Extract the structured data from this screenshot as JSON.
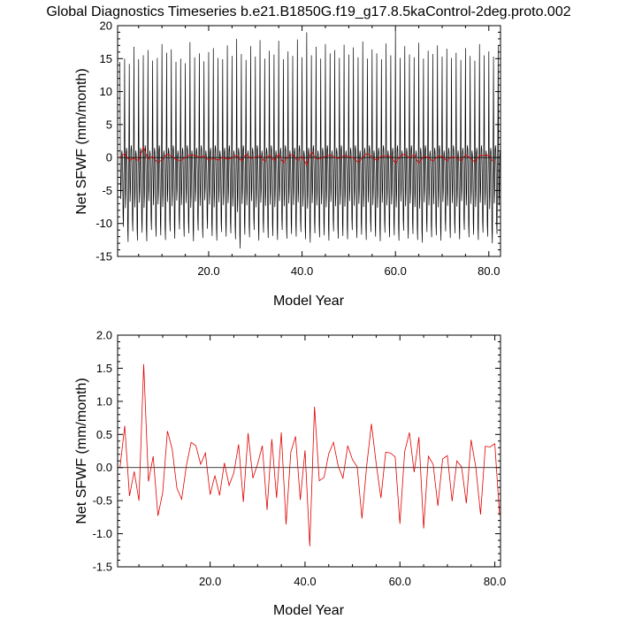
{
  "title": "Global Diagnostics Timeseries b.e21.B1850G.f19_g17.8.5kaControl-2deg.proto.002",
  "chart_data": [
    {
      "type": "line",
      "xlabel": "Model Year",
      "ylabel": "Net SFWF (mm/month)",
      "xlim": [
        0.5,
        82.5
      ],
      "ylim": [
        -15,
        20
      ],
      "xticks": [
        20,
        40,
        60,
        80
      ],
      "xtick_labels": [
        "20.0",
        "40.0",
        "60.0",
        "80.0"
      ],
      "yticks": [
        -15,
        -10,
        -5,
        0,
        5,
        10,
        15,
        20
      ],
      "ytick_labels": [
        "-15",
        "-10",
        "-5",
        "0",
        "5",
        "10",
        "15",
        "20"
      ],
      "zero_line": true,
      "series": [
        {
          "color": "#000000",
          "resolution": "monthly",
          "years": [
            1,
            82
          ],
          "seasonal_max": [
            14.5,
            15.0,
            14.2,
            16.8,
            14.9,
            15.5,
            16.3,
            14.7,
            15.1,
            17.2,
            15.9,
            16.4,
            14.5,
            15.0,
            14.3,
            17.5,
            15.2,
            15.8,
            14.6,
            16.0,
            16.6,
            15.1,
            14.9,
            17.0,
            15.4,
            18.0,
            15.7,
            14.8,
            16.9,
            15.3,
            17.8,
            15.0,
            16.2,
            15.6,
            17.7,
            14.9,
            16.1,
            15.4,
            17.9,
            15.2,
            19.0,
            15.5,
            16.8,
            15.0,
            17.2,
            15.8,
            16.3,
            15.1,
            17.1,
            15.6,
            16.7,
            15.2,
            17.6,
            15.0,
            16.4,
            15.8,
            14.9,
            17.3,
            15.5,
            19.3,
            15.1,
            16.9,
            15.6,
            15.2,
            17.4,
            15.0,
            16.2,
            15.7,
            17.0,
            15.3,
            16.5,
            15.1,
            15.9,
            14.8,
            16.6,
            15.4,
            14.7,
            17.2,
            15.5,
            16.1,
            15.3,
            16.9
          ],
          "seasonal_min": [
            -10.5,
            -12.8,
            -11.2,
            -12.6,
            -11.4,
            -12.7,
            -11.0,
            -12.0,
            -11.8,
            -12.5,
            -11.2,
            -12.3,
            -10.9,
            -12.0,
            -11.5,
            -12.7,
            -11.1,
            -12.2,
            -10.8,
            -11.9,
            -12.6,
            -11.3,
            -12.0,
            -11.5,
            -12.4,
            -13.8,
            -11.7,
            -12.1,
            -11.0,
            -12.6,
            -11.4,
            -12.2,
            -11.9,
            -12.5,
            -11.0,
            -12.3,
            -11.6,
            -12.0,
            -11.3,
            -12.4,
            -12.9,
            -11.5,
            -12.1,
            -11.8,
            -12.6,
            -11.2,
            -12.3,
            -11.9,
            -12.4,
            -11.0,
            -12.2,
            -11.7,
            -12.5,
            -11.3,
            -12.0,
            -12.7,
            -11.4,
            -12.1,
            -11.8,
            -12.6,
            -11.1,
            -12.3,
            -11.6,
            -12.5,
            -12.9,
            -11.3,
            -12.1,
            -11.8,
            -12.6,
            -11.2,
            -12.2,
            -11.5,
            -12.4,
            -11.0,
            -12.1,
            -11.7,
            -12.5,
            -11.4,
            -12.0,
            -13.0,
            -11.6,
            -12.1
          ]
        },
        {
          "color": "#e00000",
          "resolution": "annual",
          "x": [
            1,
            2,
            3,
            4,
            5,
            6,
            7,
            8,
            9,
            10,
            11,
            12,
            13,
            14,
            15,
            16,
            17,
            18,
            19,
            20,
            21,
            22,
            23,
            24,
            25,
            26,
            27,
            28,
            29,
            30,
            31,
            32,
            33,
            34,
            35,
            36,
            37,
            38,
            39,
            40,
            41,
            42,
            43,
            44,
            45,
            46,
            47,
            48,
            49,
            50,
            51,
            52,
            53,
            54,
            55,
            56,
            57,
            58,
            59,
            60,
            61,
            62,
            63,
            64,
            65,
            66,
            67,
            68,
            69,
            70,
            71,
            72,
            73,
            74,
            75,
            76,
            77,
            78,
            79,
            80,
            81
          ],
          "values": [
            0.0,
            0.63,
            -0.43,
            -0.06,
            -0.5,
            1.56,
            -0.21,
            0.17,
            -0.73,
            -0.38,
            0.55,
            0.28,
            -0.31,
            -0.48,
            0.03,
            0.38,
            0.33,
            0.05,
            0.22,
            -0.41,
            -0.12,
            -0.42,
            0.07,
            -0.27,
            -0.08,
            0.35,
            -0.52,
            0.52,
            -0.16,
            0.05,
            0.33,
            -0.64,
            0.43,
            -0.46,
            0.53,
            -0.86,
            0.23,
            0.47,
            -0.49,
            0.26,
            -1.19,
            0.92,
            -0.2,
            -0.15,
            0.21,
            0.38,
            0.02,
            -0.16,
            0.33,
            0.12,
            0.01,
            -0.77,
            0.03,
            0.66,
            0.06,
            -0.46,
            0.23,
            0.22,
            0.16,
            -0.85,
            0.24,
            0.53,
            -0.07,
            0.46,
            -0.92,
            0.17,
            0.05,
            -0.58,
            0.13,
            0.18,
            -0.51,
            0.1,
            0.01,
            -0.54,
            0.42,
            0.0,
            -0.71,
            0.32,
            0.31,
            0.36,
            -0.72
          ]
        }
      ]
    },
    {
      "type": "line",
      "xlabel": "Model Year",
      "ylabel": "Net SFWF (mm/month)",
      "xlim": [
        0.5,
        81.2
      ],
      "ylim": [
        -1.5,
        2.0
      ],
      "xticks": [
        20,
        40,
        60,
        80
      ],
      "xtick_labels": [
        "20.0",
        "40.0",
        "60.0",
        "80.0"
      ],
      "yticks": [
        -1.5,
        -1.0,
        -0.5,
        0.0,
        0.5,
        1.0,
        1.5,
        2.0
      ],
      "ytick_labels": [
        "-1.5",
        "-1.0",
        "-0.5",
        "0.0",
        "0.5",
        "1.0",
        "1.5",
        "2.0"
      ],
      "zero_line": true,
      "series": [
        {
          "color": "#e00000",
          "resolution": "annual",
          "x": [
            1,
            2,
            3,
            4,
            5,
            6,
            7,
            8,
            9,
            10,
            11,
            12,
            13,
            14,
            15,
            16,
            17,
            18,
            19,
            20,
            21,
            22,
            23,
            24,
            25,
            26,
            27,
            28,
            29,
            30,
            31,
            32,
            33,
            34,
            35,
            36,
            37,
            38,
            39,
            40,
            41,
            42,
            43,
            44,
            45,
            46,
            47,
            48,
            49,
            50,
            51,
            52,
            53,
            54,
            55,
            56,
            57,
            58,
            59,
            60,
            61,
            62,
            63,
            64,
            65,
            66,
            67,
            68,
            69,
            70,
            71,
            72,
            73,
            74,
            75,
            76,
            77,
            78,
            79,
            80,
            81
          ],
          "values": [
            0.0,
            0.63,
            -0.43,
            -0.06,
            -0.5,
            1.56,
            -0.21,
            0.17,
            -0.73,
            -0.38,
            0.55,
            0.28,
            -0.31,
            -0.48,
            0.03,
            0.38,
            0.33,
            0.05,
            0.22,
            -0.41,
            -0.12,
            -0.42,
            0.07,
            -0.27,
            -0.08,
            0.35,
            -0.52,
            0.52,
            -0.16,
            0.05,
            0.33,
            -0.64,
            0.43,
            -0.46,
            0.53,
            -0.86,
            0.23,
            0.47,
            -0.49,
            0.26,
            -1.19,
            0.92,
            -0.2,
            -0.15,
            0.21,
            0.38,
            0.02,
            -0.16,
            0.33,
            0.12,
            0.01,
            -0.77,
            0.03,
            0.66,
            0.06,
            -0.46,
            0.23,
            0.22,
            0.16,
            -0.85,
            0.24,
            0.53,
            -0.07,
            0.46,
            -0.92,
            0.17,
            0.05,
            -0.58,
            0.13,
            0.18,
            -0.51,
            0.1,
            0.01,
            -0.54,
            0.42,
            0.0,
            -0.71,
            0.32,
            0.31,
            0.36,
            -0.72
          ]
        }
      ]
    }
  ]
}
